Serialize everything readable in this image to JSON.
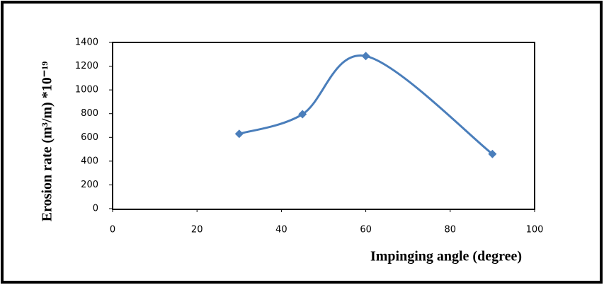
{
  "chart_data": {
    "type": "line",
    "smooth": true,
    "marker": "diamond",
    "x_label": "Impinging angle (degree)",
    "y_label": "Erosion rate (m³/m) *10⁻¹⁹",
    "x": [
      30,
      45,
      60,
      90
    ],
    "values": [
      630,
      795,
      1285,
      460
    ],
    "color": "#4a7ebb",
    "xlim": [
      0,
      100
    ],
    "xticks": [
      0,
      20,
      40,
      60,
      80,
      100
    ],
    "ylim": [
      0,
      1400
    ],
    "yticks": [
      0,
      200,
      400,
      600,
      800,
      1000,
      1200,
      1400
    ]
  }
}
